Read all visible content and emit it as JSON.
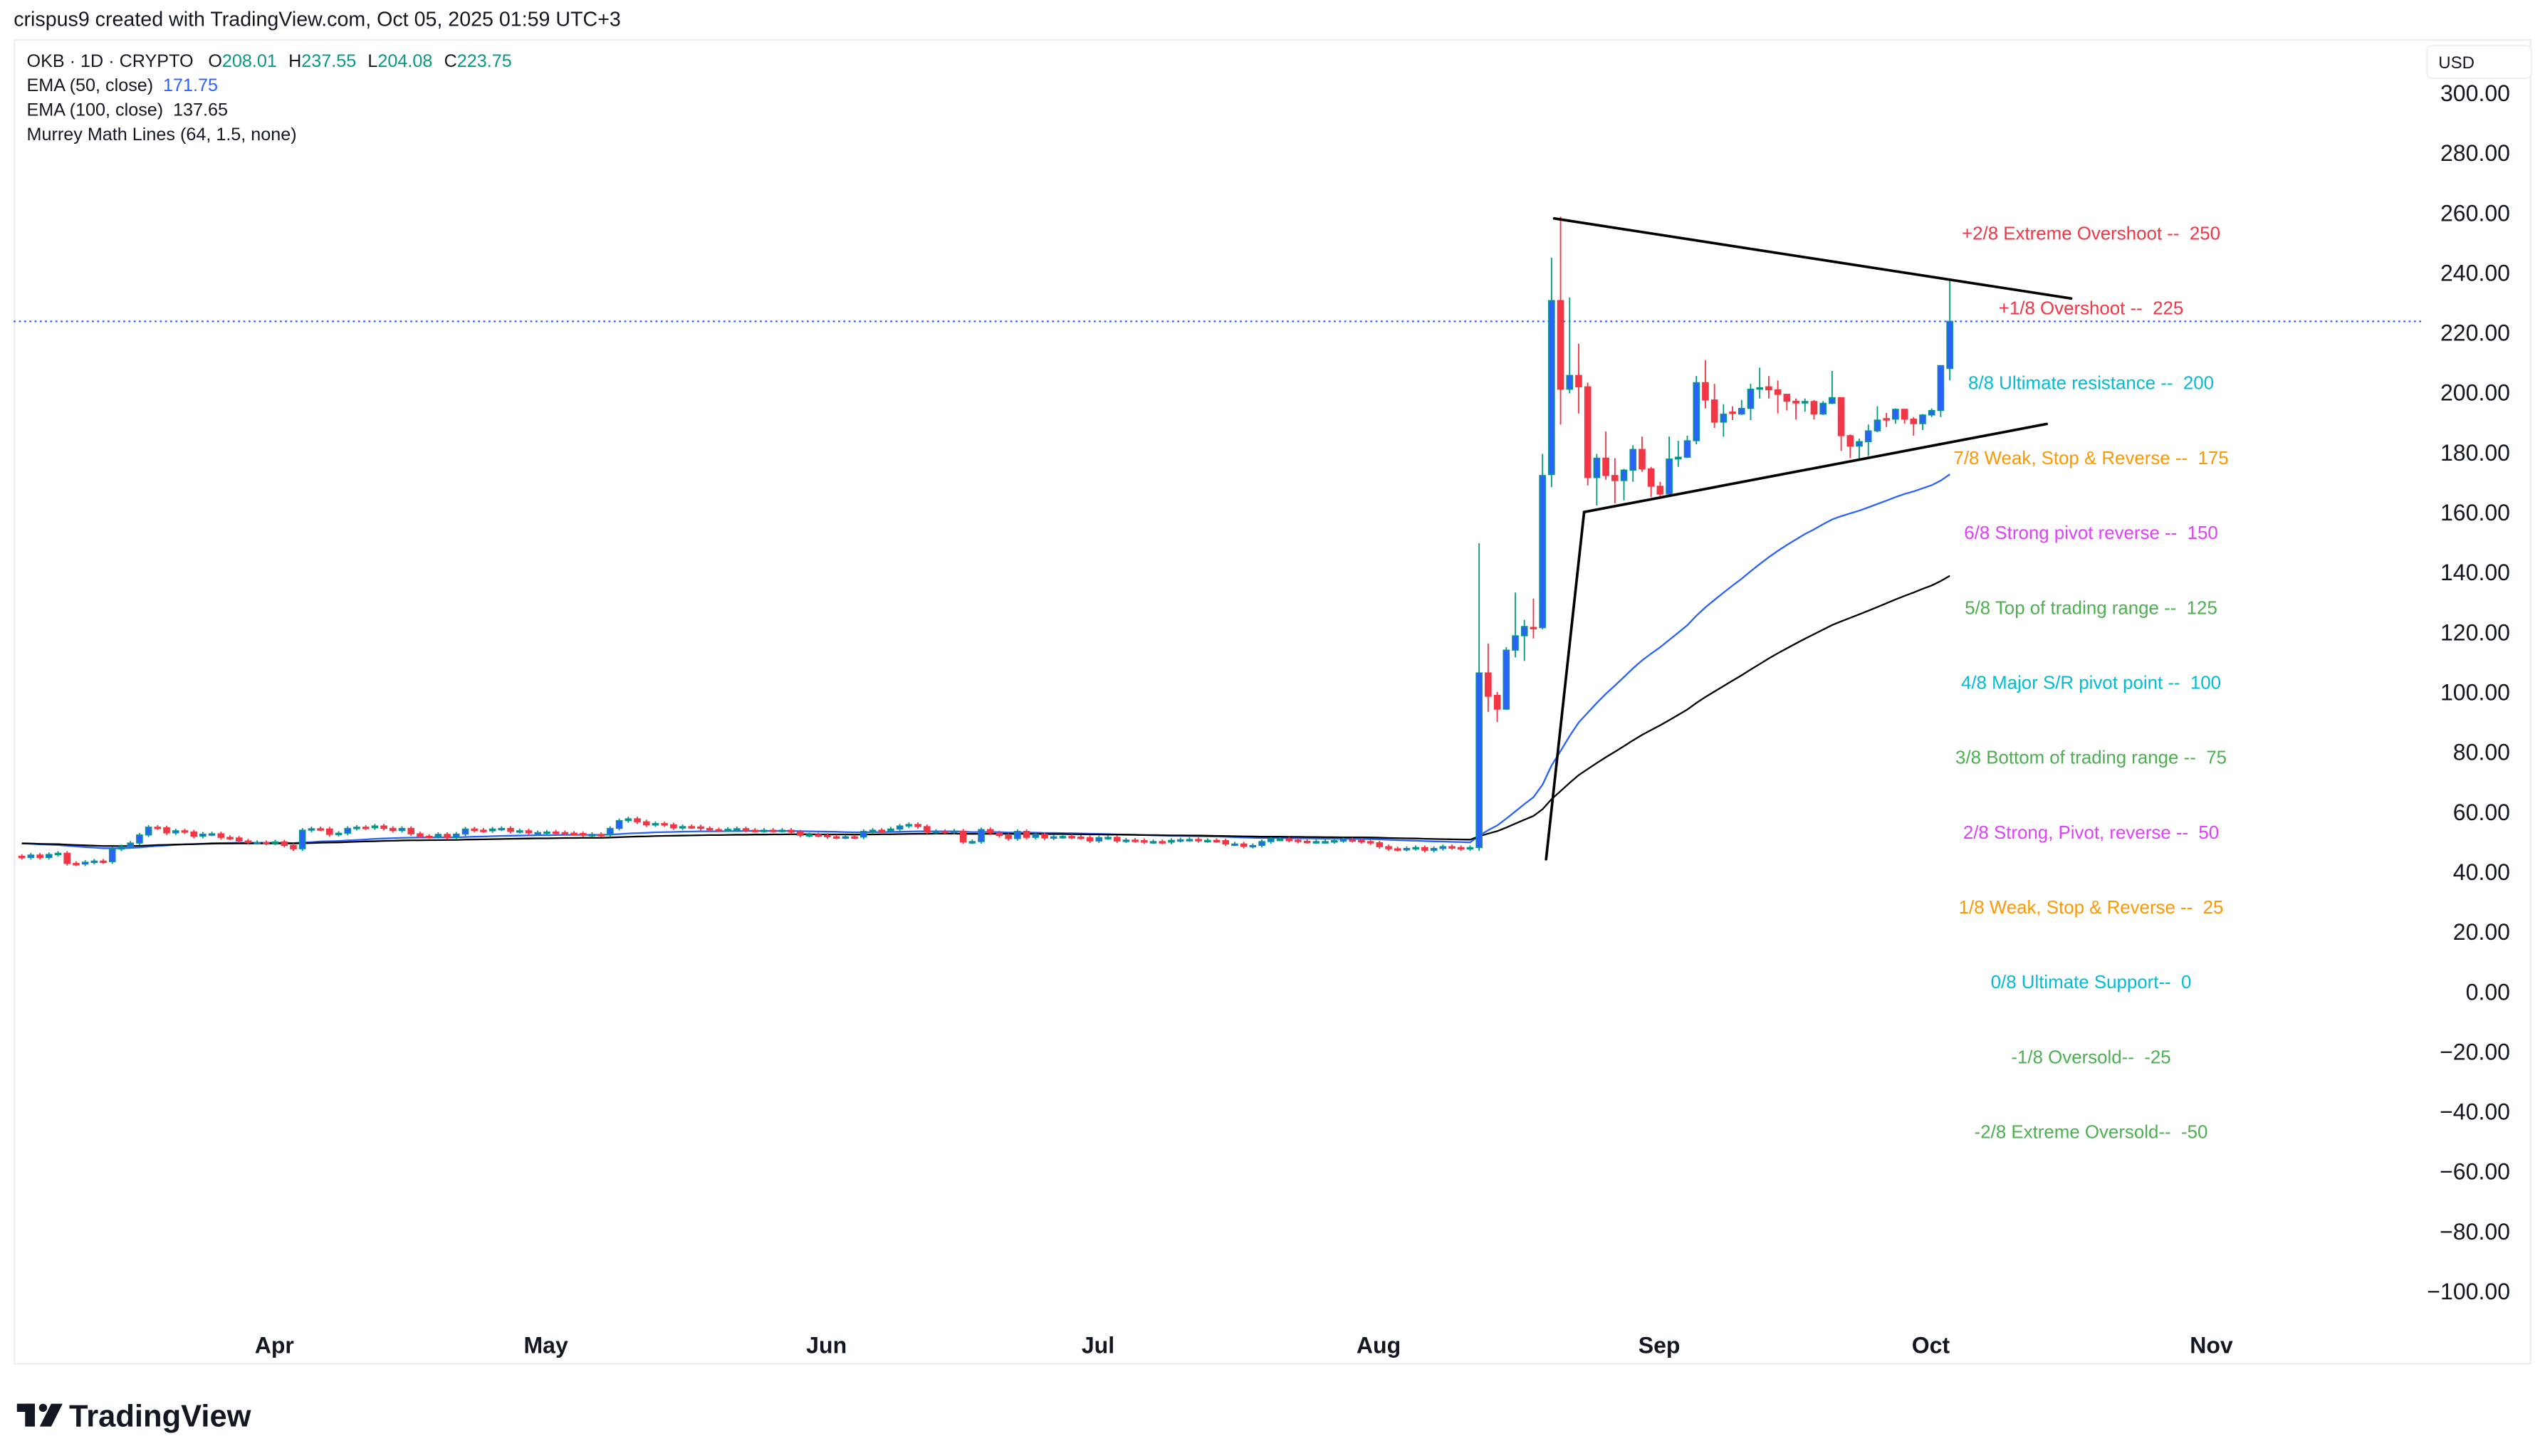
{
  "header": {
    "title": "crispus9 created with TradingView.com, Oct 05, 2025 01:59 UTC+3"
  },
  "legend": {
    "symbol": "OKB · 1D · CRYPTO",
    "o_label": "O",
    "o": "208.01",
    "h_label": "H",
    "h": "237.55",
    "l_label": "L",
    "l": "204.08",
    "c_label": "C",
    "c": "223.75",
    "ema50_label": "EMA (50, close)",
    "ema50": "171.75",
    "ema100_label": "EMA (100, close)",
    "ema100": "137.65",
    "murrey_label": "Murrey Math Lines (64, 1.5, none)"
  },
  "currency_button": "USD",
  "logo": {
    "text": "TradingView"
  },
  "colors": {
    "up_body": "#2962ff",
    "up_border": "#089981",
    "down": "#f23645",
    "ema50": "#2962ff",
    "ema100": "#000000",
    "last_price_line": "#2962ff",
    "legend_value": "#089981"
  },
  "chart_data": {
    "type": "candlestick",
    "title": "OKB · 1D · CRYPTO",
    "xlabel": "",
    "ylabel": "USD",
    "ylim": [
      -100,
      300
    ],
    "grid": false,
    "first_candle_day": 0,
    "xticks": [
      {
        "label": "Apr",
        "day": 27
      },
      {
        "label": "May",
        "day": 57
      },
      {
        "label": "Jun",
        "day": 88
      },
      {
        "label": "Jul",
        "day": 118
      },
      {
        "label": "Aug",
        "day": 149
      },
      {
        "label": "Sep",
        "day": 180
      },
      {
        "label": "Oct",
        "day": 210
      },
      {
        "label": "Nov",
        "day": 241
      }
    ],
    "yticks": [
      {
        "value": 300,
        "label": "300.00"
      },
      {
        "value": 280,
        "label": "280.00"
      },
      {
        "value": 260,
        "label": "260.00"
      },
      {
        "value": 240,
        "label": "240.00"
      },
      {
        "value": 220,
        "label": "220.00"
      },
      {
        "value": 200,
        "label": "200.00"
      },
      {
        "value": 180,
        "label": "180.00"
      },
      {
        "value": 160,
        "label": "160.00"
      },
      {
        "value": 140,
        "label": "140.00"
      },
      {
        "value": 120,
        "label": "120.00"
      },
      {
        "value": 100,
        "label": "100.00"
      },
      {
        "value": 80,
        "label": "80.00"
      },
      {
        "value": 60,
        "label": "60.00"
      },
      {
        "value": 40,
        "label": "40.00"
      },
      {
        "value": 20,
        "label": "20.00"
      },
      {
        "value": 0,
        "label": "0.00"
      },
      {
        "value": -20,
        "label": "−20.00"
      },
      {
        "value": -40,
        "label": "−40.00"
      },
      {
        "value": -60,
        "label": "−60.00"
      },
      {
        "value": -80,
        "label": "−80.00"
      },
      {
        "value": -100,
        "label": "−100.00"
      }
    ],
    "early_closes_first_open": 45.2,
    "early_closes": [
      44.8,
      45.6,
      44.8,
      45.8,
      46.2,
      42.8,
      42.6,
      43.2,
      43.6,
      43.4,
      47.6,
      48.4,
      49.6,
      52.3,
      54.9,
      54.7,
      53.0,
      53.7,
      53.3,
      51.9,
      52.6,
      52.7,
      51.5,
      51.3,
      50.3,
      49.8,
      49.8,
      49.6,
      50.0,
      48.8,
      47.7,
      53.9,
      54.4,
      54.3,
      52.5,
      52.9,
      54.5,
      54.9,
      54.7,
      55.3,
      54.5,
      53.8,
      54.5,
      52.7,
      51.9,
      51.8,
      52.5,
      51.5,
      52.6,
      54.3,
      53.9,
      53.7,
      54.3,
      54.5,
      53.5,
      53.7,
      53.0,
      53.1,
      53.3,
      53.1,
      52.9,
      52.8,
      52.3,
      52.5,
      52.3,
      54.5,
      57.1,
      57.7,
      56.7,
      55.7,
      56.1,
      55.7,
      54.7,
      55.1,
      55.0,
      54.5,
      54.1,
      54.0,
      54.2,
      54.4,
      53.9,
      53.8,
      53.9,
      53.8,
      53.9,
      53.3,
      52.2,
      52.4,
      52.2,
      51.7,
      51.6,
      51.7,
      51.6,
      53.5,
      53.9,
      53.7,
      54.3,
      55.3,
      55.8,
      55.1,
      53.3,
      53.5,
      53.3,
      53.6,
      50.0,
      50.1,
      54.1,
      53.0,
      52.1,
      51.1,
      53.5,
      51.5,
      52.5,
      51.3,
      51.7,
      51.8,
      51.6,
      51.4,
      50.3,
      51.4,
      51.5,
      50.3,
      50.6,
      50.4,
      50.0,
      50.1,
      49.9,
      50.5,
      50.7,
      50.8,
      50.4,
      50.5,
      50.4,
      49.3,
      49.3,
      48.5,
      48.8,
      50.1,
      50.9,
      50.9,
      50.6,
      50.2,
      50.1,
      50.1,
      50.1,
      50.4,
      50.7,
      50.5,
      50.1,
      49.7,
      48.4,
      47.7,
      47.5,
      47.8,
      48.1,
      47.2,
      47.8,
      48.4,
      48.1,
      47.7,
      48.1
    ],
    "ohlc_start_day": 161,
    "ohlc": [
      [
        48.1,
        149.7,
        47.0,
        106.4
      ],
      [
        106.4,
        116.2,
        93.4,
        98.6
      ],
      [
        98.9,
        100.0,
        90.0,
        94.3
      ],
      [
        94.3,
        115.0,
        94.0,
        114.0
      ],
      [
        114.0,
        133.2,
        111.6,
        118.8
      ],
      [
        118.8,
        124.1,
        110.4,
        121.9
      ],
      [
        121.6,
        131.2,
        117.9,
        121.4
      ],
      [
        121.5,
        179.5,
        121.0,
        172.3
      ],
      [
        172.6,
        245.0,
        168.4,
        230.7
      ],
      [
        230.7,
        258.7,
        189.3,
        201.1
      ],
      [
        201.1,
        231.7,
        199.7,
        205.7
      ],
      [
        205.7,
        216.3,
        193.0,
        201.9
      ],
      [
        201.9,
        203.3,
        169.0,
        171.6
      ],
      [
        171.6,
        179.5,
        162.3,
        178.1
      ],
      [
        178.1,
        187.0,
        170.9,
        172.3
      ],
      [
        172.3,
        178.1,
        163.0,
        170.6
      ],
      [
        170.6,
        174.5,
        164.0,
        174.1
      ],
      [
        174.1,
        182.4,
        170.2,
        181.0
      ],
      [
        181.0,
        185.3,
        173.5,
        174.5
      ],
      [
        174.5,
        175.2,
        165.1,
        168.7
      ],
      [
        168.7,
        170.2,
        165.1,
        166.1
      ],
      [
        166.1,
        185.3,
        165.1,
        177.8
      ],
      [
        177.8,
        183.9,
        175.2,
        178.4
      ],
      [
        178.4,
        185.6,
        178.1,
        183.9
      ],
      [
        183.9,
        205.5,
        182.7,
        203.3
      ],
      [
        203.3,
        210.8,
        194.7,
        197.5
      ],
      [
        197.5,
        202.9,
        188.2,
        190.1
      ],
      [
        190.1,
        196.1,
        185.3,
        192.8
      ],
      [
        193.5,
        195.4,
        190.8,
        193.0
      ],
      [
        192.8,
        197.5,
        192.5,
        194.7
      ],
      [
        194.7,
        202.9,
        190.8,
        201.1
      ],
      [
        201.1,
        208.3,
        198.0,
        201.6
      ],
      [
        201.9,
        205.5,
        198.0,
        200.9
      ],
      [
        200.9,
        204.0,
        193.0,
        199.4
      ],
      [
        199.4,
        199.4,
        194.0,
        197.1
      ],
      [
        197.1,
        198.0,
        191.0,
        196.5
      ],
      [
        196.5,
        198.0,
        193.6,
        197.0
      ],
      [
        197.0,
        197.5,
        191.0,
        192.8
      ],
      [
        192.8,
        197.1,
        192.5,
        196.4
      ],
      [
        196.4,
        207.2,
        196.1,
        198.3
      ],
      [
        198.3,
        198.3,
        180.5,
        185.6
      ],
      [
        185.6,
        186.0,
        178.1,
        182.1
      ],
      [
        182.1,
        184.6,
        177.4,
        183.6
      ],
      [
        183.6,
        189.3,
        178.8,
        187.2
      ],
      [
        187.2,
        195.4,
        186.7,
        190.8
      ],
      [
        191.3,
        193.2,
        188.5,
        190.8
      ],
      [
        191.1,
        194.7,
        189.6,
        194.4
      ],
      [
        194.4,
        194.4,
        189.6,
        191.1
      ],
      [
        191.1,
        191.8,
        185.6,
        189.6
      ],
      [
        189.6,
        192.8,
        187.5,
        192.5
      ],
      [
        192.5,
        194.7,
        191.8,
        194.0
      ],
      [
        194.0,
        209.1,
        191.8,
        209.0
      ],
      [
        208.01,
        237.55,
        204.08,
        223.75
      ]
    ],
    "ema_periods": [
      50,
      100
    ],
    "last_price": 223.75,
    "drawings": [
      {
        "from": {
          "day": 169.3,
          "price": 258.1
        },
        "to": {
          "day": 226.4,
          "price": 231.4
        }
      },
      {
        "from": {
          "day": 172.6,
          "price": 160.1
        },
        "to": {
          "day": 223.7,
          "price": 189.5
        }
      },
      {
        "from": {
          "day": 168.4,
          "price": 44.2
        },
        "to": {
          "day": 172.6,
          "price": 160.1
        }
      }
    ],
    "murrey_levels": [
      {
        "value": 250,
        "label": "+2/8 Extreme Overshoot --  250",
        "color": "#f23645"
      },
      {
        "value": 225,
        "label": "+1/8 Overshoot --  225",
        "color": "#f23645"
      },
      {
        "value": 200,
        "label": "8/8 Ultimate resistance --  200",
        "color": "#00bcd4"
      },
      {
        "value": 175,
        "label": "7/8 Weak, Stop & Reverse --  175",
        "color": "#ff9800"
      },
      {
        "value": 150,
        "label": "6/8 Strong pivot reverse --  150",
        "color": "#e040fb"
      },
      {
        "value": 125,
        "label": "5/8 Top of trading range --  125",
        "color": "#4caf50"
      },
      {
        "value": 100,
        "label": "4/8 Major S/R pivot point --  100",
        "color": "#00bcd4"
      },
      {
        "value": 75,
        "label": "3/8 Bottom of trading range --  75",
        "color": "#4caf50"
      },
      {
        "value": 50,
        "label": "2/8 Strong, Pivot, reverse --  50",
        "color": "#e040fb"
      },
      {
        "value": 25,
        "label": "1/8 Weak, Stop & Reverse --  25",
        "color": "#ff9800"
      },
      {
        "value": 0,
        "label": "0/8 Ultimate Support--  0",
        "color": "#00bcd4"
      },
      {
        "value": -25,
        "label": "-1/8 Oversold--  -25",
        "color": "#4caf50"
      },
      {
        "value": -50,
        "label": "-2/8 Extreme Oversold--  -50",
        "color": "#4caf50"
      }
    ]
  }
}
